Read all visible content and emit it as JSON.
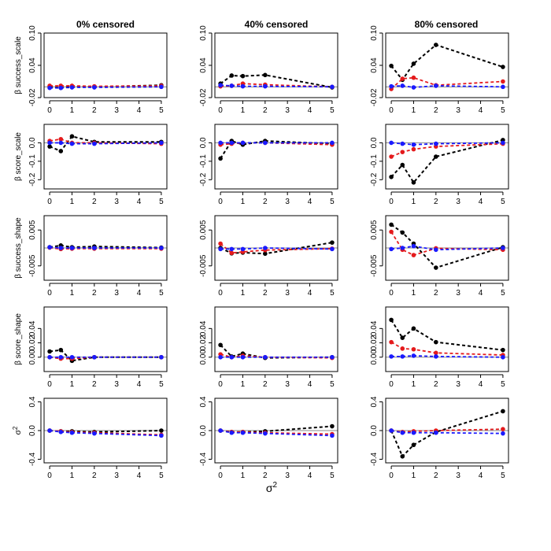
{
  "chart_data": {
    "type": "line",
    "x": [
      0,
      0.5,
      1,
      2,
      5
    ],
    "xticks": [
      "0",
      "1",
      "2",
      "3",
      "4",
      "5"
    ],
    "xlabel": "σ",
    "xlabel_superscript": "2",
    "columns": [
      "0% censored",
      "40% censored",
      "80% censored"
    ],
    "colors": {
      "black": "#000000",
      "red": "#e41a1c",
      "blue": "#1a1aff",
      "ref": "#8a8a8a"
    },
    "rows": [
      {
        "ylabel": "β success_scale",
        "ylim": [
          -0.02,
          0.1
        ],
        "yticks": [
          -0.02,
          0.04,
          0.1
        ],
        "ytick_labels": [
          "-0.02",
          "0.04",
          "0.10"
        ],
        "panels": [
          {
            "title": "0% censored",
            "series": [
              {
                "name": "black",
                "values": [
                  0.0,
                  -0.002,
                  0.001,
                  0.0,
                  0.003
                ]
              },
              {
                "name": "red",
                "values": [
                  0.002,
                  0.002,
                  0.002,
                  0.001,
                  0.002
                ]
              },
              {
                "name": "blue",
                "values": [
                  -0.002,
                  -0.002,
                  -0.001,
                  -0.001,
                  0.0
                ]
              }
            ]
          },
          {
            "title": "40% censored",
            "series": [
              {
                "name": "black",
                "values": [
                  0.006,
                  0.021,
                  0.02,
                  0.022,
                  -0.001
                ]
              },
              {
                "name": "red",
                "values": [
                  0.001,
                  0.002,
                  0.006,
                  0.004,
                  0.0
                ]
              },
              {
                "name": "blue",
                "values": [
                  0.003,
                  0.002,
                  0.001,
                  0.001,
                  0.0
                ]
              }
            ]
          },
          {
            "title": "80% censored",
            "series": [
              {
                "name": "black",
                "values": [
                  0.039,
                  0.013,
                  0.043,
                  0.078,
                  0.037
                ]
              },
              {
                "name": "red",
                "values": [
                  -0.004,
                  0.015,
                  0.017,
                  0.003,
                  0.01
                ]
              },
              {
                "name": "blue",
                "values": [
                  0.001,
                  0.002,
                  -0.001,
                  0.002,
                  0.0
                ]
              }
            ]
          }
        ]
      },
      {
        "ylabel": "β score_scale",
        "ylim": [
          -0.25,
          0.1
        ],
        "yticks": [
          -0.2,
          -0.1,
          0.0
        ],
        "ytick_labels": [
          "-0.2",
          "-0.1",
          "0.0"
        ],
        "panels": [
          {
            "title": "0% censored",
            "series": [
              {
                "name": "black",
                "values": [
                  -0.02,
                  -0.045,
                  0.035,
                  0.005,
                  0.005
                ]
              },
              {
                "name": "red",
                "values": [
                  0.01,
                  0.02,
                  0.0,
                  0.0,
                  -0.005
                ]
              },
              {
                "name": "blue",
                "values": [
                  0.0,
                  0.0,
                  -0.005,
                  -0.005,
                  0.0
                ]
              }
            ]
          },
          {
            "title": "40% censored",
            "series": [
              {
                "name": "black",
                "values": [
                  -0.085,
                  0.01,
                  -0.01,
                  0.01,
                  -0.005
                ]
              },
              {
                "name": "red",
                "values": [
                  -0.01,
                  -0.005,
                  0.0,
                  0.0,
                  -0.01
                ]
              },
              {
                "name": "blue",
                "values": [
                  0.0,
                  0.0,
                  0.0,
                  0.0,
                  0.0
                ]
              }
            ]
          },
          {
            "title": "80% censored",
            "series": [
              {
                "name": "black",
                "values": [
                  -0.185,
                  -0.12,
                  -0.215,
                  -0.075,
                  0.015
                ]
              },
              {
                "name": "red",
                "values": [
                  -0.075,
                  -0.05,
                  -0.035,
                  -0.02,
                  -0.005
                ]
              },
              {
                "name": "blue",
                "values": [
                  0.0,
                  -0.005,
                  -0.01,
                  -0.005,
                  0.0
                ]
              }
            ]
          }
        ]
      },
      {
        "ylabel": "β success_shape",
        "ylim": [
          -0.009,
          0.009
        ],
        "yticks": [
          -0.005,
          0.005
        ],
        "ytick_labels": [
          "-0.005",
          "0.005"
        ],
        "panels": [
          {
            "title": "0% censored",
            "series": [
              {
                "name": "black",
                "values": [
                  0.0002,
                  0.0007,
                  0.0002,
                  0.0004,
                  0.0001
                ]
              },
              {
                "name": "red",
                "values": [
                  0.0001,
                  -0.0003,
                  -0.0002,
                  -0.0002,
                  -0.0002
                ]
              },
              {
                "name": "blue",
                "values": [
                  0.0002,
                  0.0,
                  0.0,
                  0.0,
                  0.0
                ]
              }
            ]
          },
          {
            "title": "40% censored",
            "series": [
              {
                "name": "black",
                "values": [
                  0.0,
                  -0.0015,
                  -0.0013,
                  -0.0016,
                  0.0015
                ]
              },
              {
                "name": "red",
                "values": [
                  0.0012,
                  -0.0014,
                  -0.0011,
                  -0.0006,
                  -0.0002
                ]
              },
              {
                "name": "blue",
                "values": [
                  -0.0003,
                  -0.0003,
                  -0.0003,
                  0.0,
                  -0.0003
                ]
              }
            ]
          },
          {
            "title": "80% censored",
            "series": [
              {
                "name": "black",
                "values": [
                  0.0065,
                  0.0043,
                  0.0012,
                  -0.0055,
                  0.0002
                ]
              },
              {
                "name": "red",
                "values": [
                  0.0045,
                  -0.0005,
                  -0.002,
                  -0.0001,
                  -0.0005
                ]
              },
              {
                "name": "blue",
                "values": [
                  -0.0003,
                  0.0,
                  0.0005,
                  -0.0005,
                  0.0
                ]
              }
            ]
          }
        ]
      },
      {
        "ylabel": "β score_shape",
        "ylim": [
          -0.02,
          0.07
        ],
        "yticks": [
          0.0,
          0.02,
          0.04
        ],
        "ytick_labels": [
          "0.00",
          "0.02",
          "0.04"
        ],
        "panels": [
          {
            "title": "0% censored",
            "series": [
              {
                "name": "black",
                "values": [
                  0.008,
                  0.01,
                  -0.005,
                  0.0,
                  0.0
                ]
              },
              {
                "name": "red",
                "values": [
                  0.0,
                  -0.002,
                  -0.002,
                  0.0,
                  0.0
                ]
              },
              {
                "name": "blue",
                "values": [
                  0.0,
                  0.0,
                  0.0,
                  0.0,
                  0.0
                ]
              }
            ]
          },
          {
            "title": "40% censored",
            "series": [
              {
                "name": "black",
                "values": [
                  0.017,
                  0.001,
                  0.005,
                  -0.001,
                  0.0
                ]
              },
              {
                "name": "red",
                "values": [
                  0.004,
                  0.0,
                  0.002,
                  0.0,
                  -0.001
                ]
              },
              {
                "name": "blue",
                "values": [
                  0.0,
                  0.0,
                  0.0,
                  0.0,
                  0.0
                ]
              }
            ]
          },
          {
            "title": "80% censored",
            "series": [
              {
                "name": "black",
                "values": [
                  0.052,
                  0.027,
                  0.04,
                  0.021,
                  0.01
                ]
              },
              {
                "name": "red",
                "values": [
                  0.021,
                  0.012,
                  0.011,
                  0.006,
                  0.003
                ]
              },
              {
                "name": "blue",
                "values": [
                  0.001,
                  0.001,
                  0.002,
                  0.001,
                  0.0
                ]
              }
            ]
          }
        ]
      },
      {
        "ylabel": "σ",
        "ylabel_superscript": "2",
        "ylim": [
          -0.45,
          0.45
        ],
        "yticks": [
          -0.4,
          0.0,
          0.4
        ],
        "ytick_labels": [
          "-0.4",
          "0.0",
          "0.4"
        ],
        "panels": [
          {
            "title": "0% censored",
            "series": [
              {
                "name": "black",
                "values": [
                  0.0,
                  -0.01,
                  -0.01,
                  -0.02,
                  0.0
                ]
              },
              {
                "name": "red",
                "values": [
                  0.0,
                  -0.01,
                  -0.02,
                  -0.03,
                  -0.06
                ]
              },
              {
                "name": "blue",
                "values": [
                  0.0,
                  -0.02,
                  -0.03,
                  -0.04,
                  -0.07
                ]
              }
            ]
          },
          {
            "title": "40% censored",
            "series": [
              {
                "name": "black",
                "values": [
                  0.0,
                  -0.02,
                  -0.02,
                  -0.01,
                  0.06
                ]
              },
              {
                "name": "red",
                "values": [
                  0.0,
                  -0.02,
                  -0.02,
                  -0.03,
                  -0.05
                ]
              },
              {
                "name": "blue",
                "values": [
                  0.0,
                  -0.03,
                  -0.03,
                  -0.04,
                  -0.07
                ]
              }
            ]
          },
          {
            "title": "80% censored",
            "series": [
              {
                "name": "black",
                "values": [
                  0.0,
                  -0.36,
                  -0.2,
                  -0.02,
                  0.27
                ]
              },
              {
                "name": "red",
                "values": [
                  0.0,
                  -0.02,
                  -0.01,
                  0.0,
                  0.02
                ]
              },
              {
                "name": "blue",
                "values": [
                  0.0,
                  -0.03,
                  -0.03,
                  -0.03,
                  -0.04
                ]
              }
            ]
          }
        ]
      }
    ]
  }
}
